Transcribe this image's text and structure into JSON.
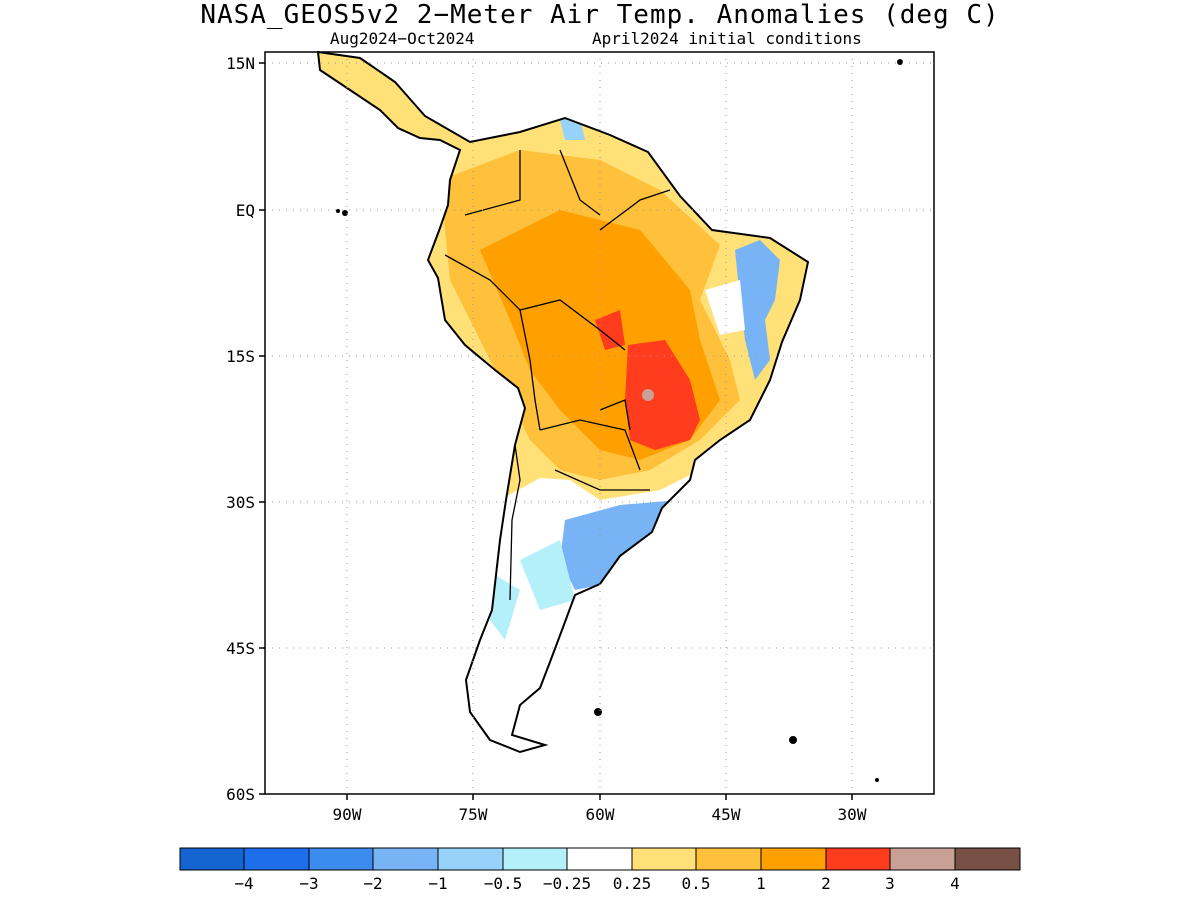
{
  "header": {
    "title": "NASA_GEOS5v2 2−Meter Air Temp. Anomalies (deg C)",
    "period": "Aug2024−Oct2024",
    "init": "April2024 initial conditions"
  },
  "map": {
    "region": "South America",
    "lon_ticks": [
      "90W",
      "75W",
      "60W",
      "45W",
      "30W"
    ],
    "lat_ticks": [
      "15N",
      "EQ",
      "15S",
      "30S",
      "45S",
      "60S"
    ],
    "lon_range": [
      -100,
      -20
    ],
    "lat_range": [
      -60,
      15
    ],
    "grid": true
  },
  "legend": {
    "colors": [
      "#1464d2",
      "#1e6eeb",
      "#3c8cf0",
      "#78b4f5",
      "#96d2fa",
      "#b4f0fa",
      "#ffffff",
      "#ffe178",
      "#ffc03c",
      "#ffa000",
      "#ff3c1e",
      "#c8a096",
      "#785046"
    ],
    "labels": [
      "−4",
      "−3",
      "−2",
      "−1",
      "−0.5",
      "−0.25",
      "0.25",
      "0.5",
      "1",
      "2",
      "3",
      "4"
    ]
  }
}
